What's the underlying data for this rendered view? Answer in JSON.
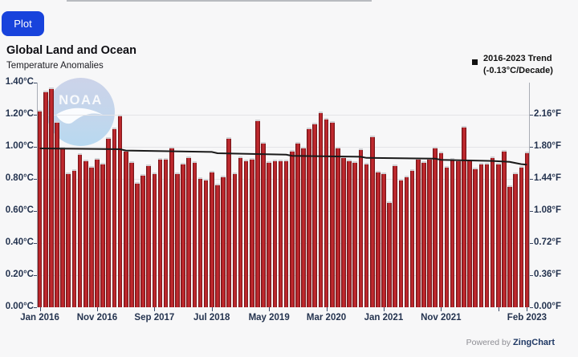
{
  "toolbar": {
    "plot_label": "Plot"
  },
  "header": {
    "title": "Global Land and Ocean",
    "subtitle": "Temperature Anomalies"
  },
  "legend": {
    "line1": "2016-2023 Trend",
    "line2": "(-0.13°C/Decade)"
  },
  "watermark": {
    "text": "NOAA"
  },
  "footer": {
    "powered_by": "Powered by ",
    "brand": "ZingChart"
  },
  "colors": {
    "button_blue": "#1843dc",
    "bar_center": "#c32a2f",
    "bar_mid": "#a02025",
    "bar_edge": "#5c0d10",
    "trend_line": "#1a1a1a",
    "axis_text": "#24334f",
    "grid": "#e4e4e7",
    "noaa_top": "#ccd3e9",
    "noaa_bottom": "#b8d9f0"
  },
  "chart_data": {
    "type": "bar",
    "title": "Global Land and Ocean",
    "subtitle": "Temperature Anomalies",
    "unit_left": "°C",
    "unit_right": "°F",
    "ylim_c": [
      0,
      1.4
    ],
    "grid": true,
    "legend_position": "top-right",
    "start_month": "Jan 2016",
    "end_month": "Feb 2023",
    "y_ticks_c": [
      {
        "label": "1.40°C",
        "v": 1.4
      },
      {
        "label": "1.20°C",
        "v": 1.2
      },
      {
        "label": "1.00°C",
        "v": 1.0
      },
      {
        "label": "0.80°C",
        "v": 0.8
      },
      {
        "label": "0.60°C",
        "v": 0.6
      },
      {
        "label": "0.40°C",
        "v": 0.4
      },
      {
        "label": "0.20°C",
        "v": 0.2
      },
      {
        "label": "0.00°C",
        "v": 0.0
      }
    ],
    "y_ticks_f": [
      {
        "label": "2.16°F",
        "v": 1.2
      },
      {
        "label": "1.80°F",
        "v": 1.0
      },
      {
        "label": "1.44°F",
        "v": 0.8
      },
      {
        "label": "1.08°F",
        "v": 0.6
      },
      {
        "label": "0.72°F",
        "v": 0.4
      },
      {
        "label": "0.36°F",
        "v": 0.2
      },
      {
        "label": "0.00°F",
        "v": 0.0
      }
    ],
    "x_ticks": [
      {
        "label": "Jan 2016",
        "i": 0
      },
      {
        "label": "Nov 2016",
        "i": 10
      },
      {
        "label": "Sep 2017",
        "i": 20
      },
      {
        "label": "Jul 2018",
        "i": 30
      },
      {
        "label": "May 2019",
        "i": 40
      },
      {
        "label": "Mar 2020",
        "i": 50
      },
      {
        "label": "Jan 2021",
        "i": 60
      },
      {
        "label": "Nov 2021",
        "i": 70
      },
      {
        "label": "",
        "i": 80
      },
      {
        "label": "Feb 2023",
        "i": 85
      }
    ],
    "values_c": [
      1.23,
      1.35,
      1.37,
      1.16,
      1.0,
      0.84,
      0.86,
      0.96,
      0.92,
      0.88,
      0.93,
      0.9,
      1.06,
      1.12,
      1.2,
      0.98,
      0.91,
      0.78,
      0.83,
      0.89,
      0.84,
      0.93,
      0.93,
      1.0,
      0.84,
      0.9,
      0.94,
      0.91,
      0.81,
      0.8,
      0.85,
      0.77,
      0.82,
      1.06,
      0.84,
      0.94,
      0.92,
      0.93,
      1.17,
      1.03,
      0.91,
      0.92,
      0.92,
      0.92,
      0.98,
      1.03,
      1.0,
      1.12,
      1.15,
      1.22,
      1.18,
      1.16,
      1.0,
      0.94,
      0.92,
      0.91,
      0.99,
      0.9,
      1.07,
      0.85,
      0.84,
      0.66,
      0.89,
      0.8,
      0.82,
      0.86,
      0.93,
      0.91,
      0.93,
      1.0,
      0.97,
      0.88,
      0.93,
      0.92,
      1.13,
      0.92,
      0.87,
      0.9,
      0.9,
      0.94,
      0.9,
      0.98,
      0.76,
      0.84,
      0.88,
      0.97
    ],
    "trend": {
      "label": "2016-2023 Trend",
      "rate_label": "(-0.13°C/Decade)",
      "points": [
        [
          0,
          0.99
        ],
        [
          14,
          0.985
        ],
        [
          15,
          0.977
        ],
        [
          30,
          0.968
        ],
        [
          31,
          0.96
        ],
        [
          43,
          0.951
        ],
        [
          44,
          0.944
        ],
        [
          56,
          0.938
        ],
        [
          57,
          0.931
        ],
        [
          69,
          0.926
        ],
        [
          70,
          0.919
        ],
        [
          79,
          0.912
        ],
        [
          82,
          0.906
        ],
        [
          84,
          0.892
        ],
        [
          85,
          0.889
        ]
      ]
    }
  }
}
